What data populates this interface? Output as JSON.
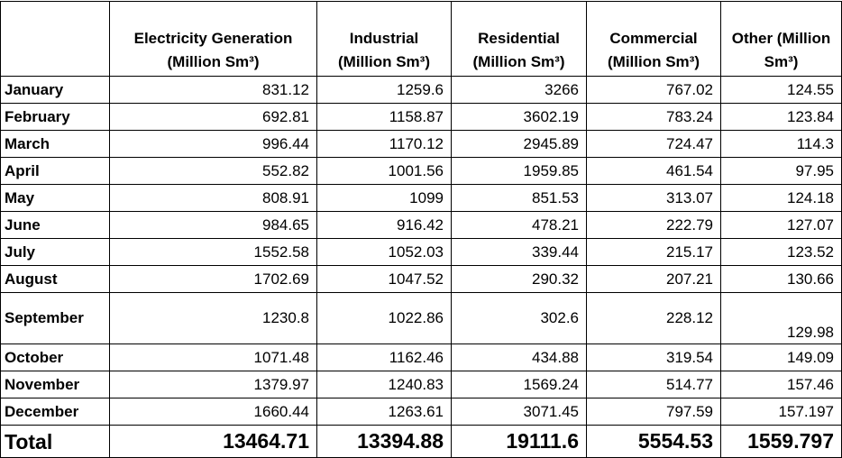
{
  "table": {
    "header": [
      "Electricity Generation (Million Sm³)",
      "Industrial (Million Sm³)",
      "Residential (Million Sm³)",
      "Commercial (Million Sm³)",
      "Other (Million Sm³)"
    ],
    "rows": [
      [
        "January",
        "831.12",
        "1259.6",
        "3266",
        "767.02",
        "124.55"
      ],
      [
        "February",
        "692.81",
        "1158.87",
        "3602.19",
        "783.24",
        "123.84"
      ],
      [
        "March",
        "996.44",
        "1170.12",
        "2945.89",
        "724.47",
        "114.3"
      ],
      [
        "April",
        "552.82",
        "1001.56",
        "1959.85",
        "461.54",
        "97.95"
      ],
      [
        "May",
        "808.91",
        "1099",
        "851.53",
        "313.07",
        "124.18"
      ],
      [
        "June",
        "984.65",
        "916.42",
        "478.21",
        "222.79",
        "127.07"
      ],
      [
        "July",
        "1552.58",
        "1052.03",
        "339.44",
        "215.17",
        "123.52"
      ],
      [
        "August",
        "1702.69",
        "1047.52",
        "290.32",
        "207.21",
        "130.66"
      ],
      [
        "September",
        "1230.8",
        "1022.86",
        "302.6",
        "228.12",
        "129.98"
      ],
      [
        "October",
        "1071.48",
        "1162.46",
        "434.88",
        "319.54",
        "149.09"
      ],
      [
        "November",
        "1379.97",
        "1240.83",
        "1569.24",
        "514.77",
        "157.46"
      ],
      [
        "December",
        "1660.44",
        "1263.61",
        "3071.45",
        "797.59",
        "157.197"
      ]
    ],
    "total": [
      "Total",
      "13464.71",
      "13394.88",
      "19111.6",
      "5554.53",
      "1559.797"
    ]
  }
}
